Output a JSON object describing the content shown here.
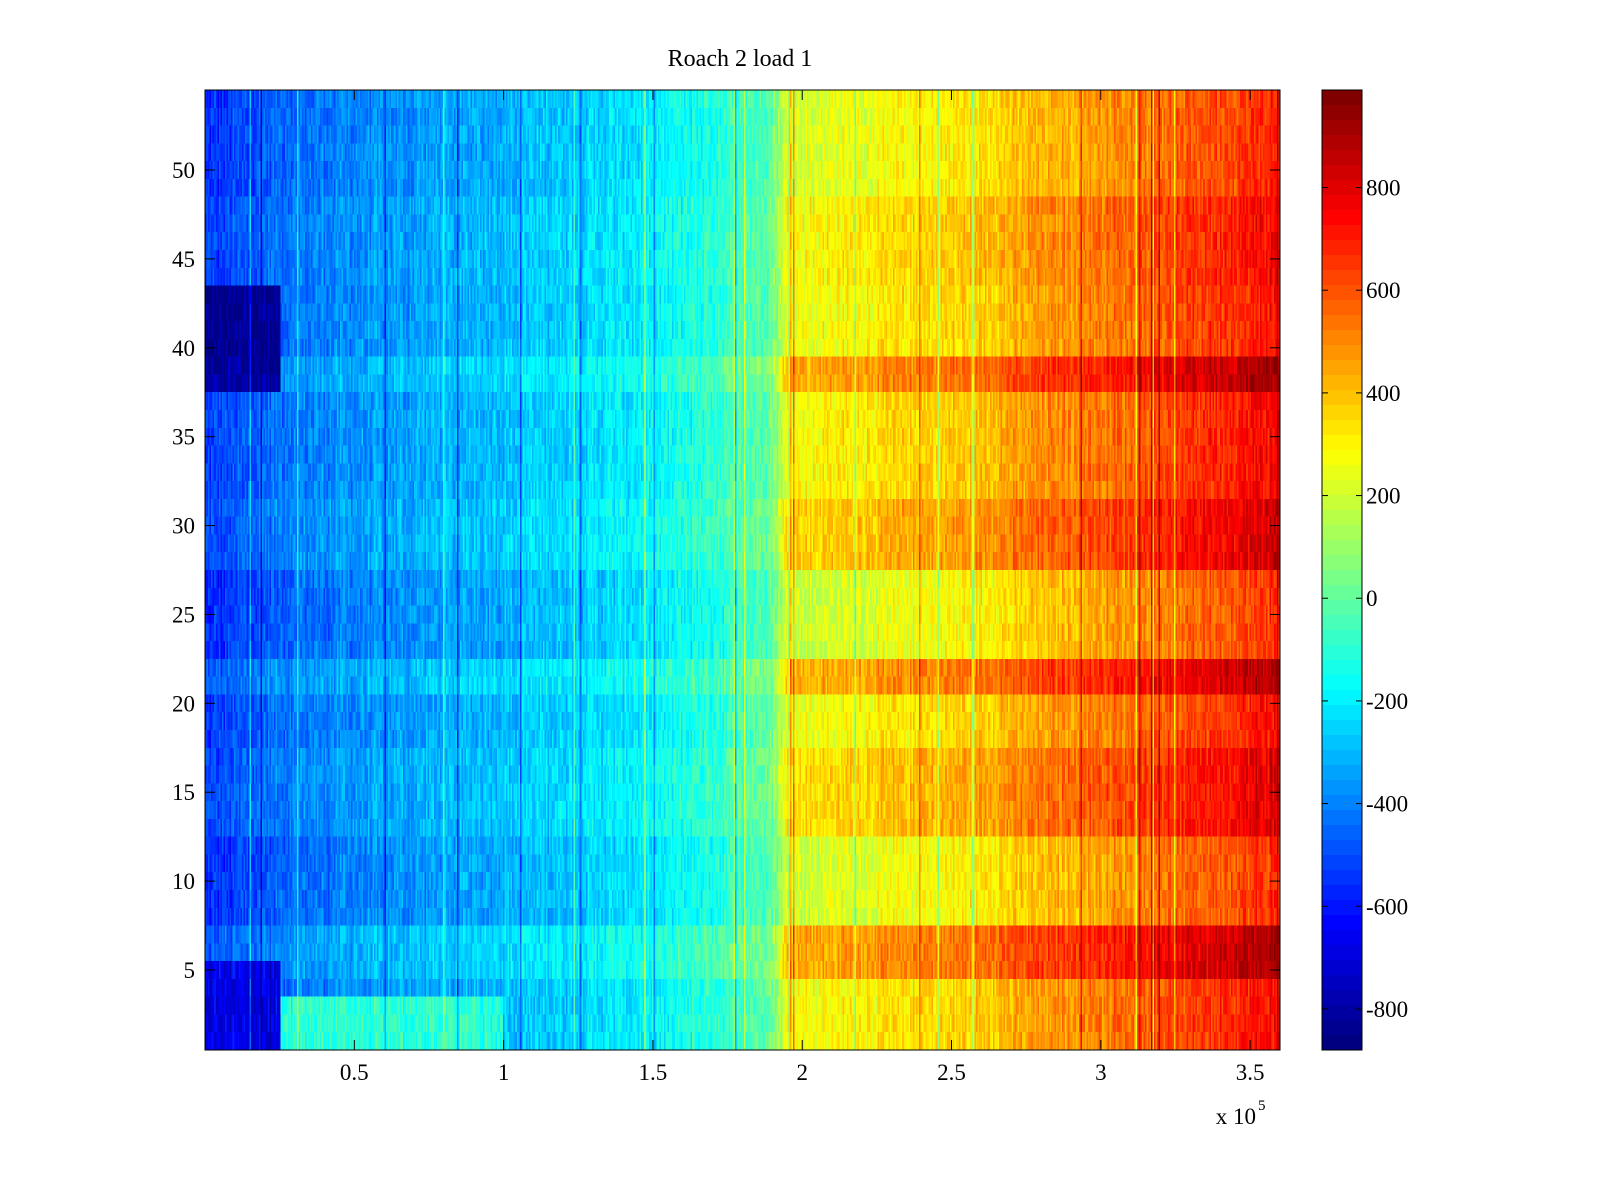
{
  "chart_data": {
    "type": "heatmap",
    "title": "Roach 2 load 1",
    "xlabel": "",
    "ylabel": "",
    "x_exponent_label": {
      "base": "x 10",
      "exponent": "5"
    },
    "xlim": [
      0,
      360000
    ],
    "ylim": [
      0.5,
      54.5
    ],
    "x_ticks": [
      {
        "value": 50000,
        "label": "0.5"
      },
      {
        "value": 100000,
        "label": "1"
      },
      {
        "value": 150000,
        "label": "1.5"
      },
      {
        "value": 200000,
        "label": "2"
      },
      {
        "value": 250000,
        "label": "2.5"
      },
      {
        "value": 300000,
        "label": "3"
      },
      {
        "value": 350000,
        "label": "3.5"
      }
    ],
    "y_ticks": [
      {
        "value": 5,
        "label": "5"
      },
      {
        "value": 10,
        "label": "10"
      },
      {
        "value": 15,
        "label": "15"
      },
      {
        "value": 20,
        "label": "20"
      },
      {
        "value": 25,
        "label": "25"
      },
      {
        "value": 30,
        "label": "30"
      },
      {
        "value": 35,
        "label": "35"
      },
      {
        "value": 40,
        "label": "40"
      },
      {
        "value": 45,
        "label": "45"
      },
      {
        "value": 50,
        "label": "50"
      }
    ],
    "rows": 54,
    "colorbar": {
      "colormap": "jet",
      "clim": [
        -880,
        990
      ],
      "ticks": [
        {
          "value": -800,
          "label": "-800"
        },
        {
          "value": -600,
          "label": "-600"
        },
        {
          "value": -400,
          "label": "-400"
        },
        {
          "value": -200,
          "label": "-200"
        },
        {
          "value": 0,
          "label": "0"
        },
        {
          "value": 200,
          "label": "200"
        },
        {
          "value": 400,
          "label": "400"
        },
        {
          "value": 600,
          "label": "600"
        },
        {
          "value": 800,
          "label": "800"
        }
      ]
    },
    "column_profile": {
      "x": [
        0,
        10000,
        25000,
        50000,
        100000,
        150000,
        180000,
        190000,
        195000,
        250000,
        300000,
        350000,
        360000
      ],
      "value": [
        -560,
        -520,
        -440,
        -390,
        -300,
        -200,
        -60,
        20,
        250,
        350,
        520,
        700,
        740
      ]
    },
    "row_offsets": [
      {
        "rows": [
          1,
          2,
          3,
          4
        ],
        "offset": 10
      },
      {
        "rows": [
          5,
          6,
          7
        ],
        "offset": 180
      },
      {
        "rows": [
          8,
          9,
          10,
          11,
          12
        ],
        "offset": -60
      },
      {
        "rows": [
          13,
          14,
          15,
          16,
          17
        ],
        "offset": 80
      },
      {
        "rows": [
          18,
          19,
          20
        ],
        "offset": 0
      },
      {
        "rows": [
          21,
          22
        ],
        "offset": 170
      },
      {
        "rows": [
          23,
          24,
          25,
          26,
          27
        ],
        "offset": -70
      },
      {
        "rows": [
          28,
          29,
          30,
          31
        ],
        "offset": 110
      },
      {
        "rows": [
          32,
          33,
          34,
          35,
          36,
          37
        ],
        "offset": 30
      },
      {
        "rows": [
          38,
          39
        ],
        "offset": 190
      },
      {
        "rows": [
          40,
          41,
          42,
          43
        ],
        "offset": 0
      },
      {
        "rows": [
          44,
          45,
          46,
          47,
          48
        ],
        "offset": 30
      },
      {
        "rows": [
          49,
          50,
          51,
          52,
          53,
          54
        ],
        "offset": -40
      }
    ],
    "features": [
      {
        "kind": "low-band",
        "x_range": [
          0,
          25000
        ],
        "rows": [
          38,
          43
        ],
        "value": -850
      },
      {
        "kind": "low-band",
        "x_range": [
          0,
          25000
        ],
        "rows": [
          1,
          5
        ],
        "value": -700
      },
      {
        "kind": "raised-band",
        "x_range": [
          25000,
          100000
        ],
        "rows": [
          1,
          3
        ],
        "value": -100
      }
    ]
  }
}
